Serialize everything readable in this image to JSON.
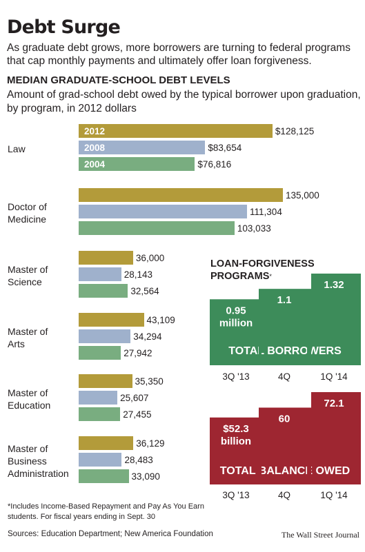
{
  "header": {
    "title": "Debt Surge",
    "subtitle": "As graduate debt grows, more borrowers are turning to federal programs that cap monthly payments and ultimately offer loan forgiveness."
  },
  "chart_data": [
    {
      "type": "bar",
      "orientation": "horizontal",
      "title": "MEDIAN GRADUATE-SCHOOL DEBT LEVELS",
      "subtitle": "Amount of grad-school debt owed by the typical borrower upon graduation, by program, in 2012 dollars",
      "categories": [
        [
          "Law"
        ],
        [
          "Doctor of",
          "Medicine"
        ],
        [
          "Master of",
          "Science"
        ],
        [
          "Master of",
          "Arts"
        ],
        [
          "Master of",
          "Education"
        ],
        [
          "Master of",
          "Business",
          "Administration"
        ]
      ],
      "series": [
        {
          "name": "2012",
          "color": "#b39b3a",
          "values": [
            128125,
            135000,
            36000,
            43109,
            35350,
            36129
          ],
          "labels": [
            "$128,125",
            "135,000",
            "36,000",
            "43,109",
            "35,350",
            "36,129"
          ]
        },
        {
          "name": "2008",
          "color": "#9fb1cc",
          "values": [
            83654,
            111304,
            28143,
            34294,
            25607,
            28483
          ],
          "labels": [
            "$83,654",
            "111,304",
            "28,143",
            "34,294",
            "25,607",
            "28,483"
          ]
        },
        {
          "name": "2004",
          "color": "#79ad80",
          "values": [
            76816,
            103033,
            32564,
            27942,
            27455,
            33090
          ],
          "labels": [
            "$76,816",
            "103,033",
            "32,564",
            "27,942",
            "27,455",
            "33,090"
          ]
        }
      ]
    },
    {
      "type": "bar",
      "group_title": "LOAN-FORGIVENESS PROGRAMS",
      "footnote_marker": "*",
      "title": "TOTAL BORROWERS",
      "color": "#3d8c5a",
      "categories": [
        "3Q '13",
        "4Q",
        "1Q '14"
      ],
      "values": [
        0.95,
        1.1,
        1.32
      ],
      "labels": [
        "0.95",
        "1.1",
        "1.32"
      ],
      "first_unit": "million"
    },
    {
      "type": "bar",
      "title": "TOTAL BALANCE OWED",
      "color": "#9e2631",
      "categories": [
        "3Q '13",
        "4Q",
        "1Q '14"
      ],
      "values": [
        52.3,
        60,
        72.1
      ],
      "labels": [
        "$52.3",
        "60",
        "72.1"
      ],
      "first_unit": "billion"
    }
  ],
  "footer": {
    "footnote": "*Includes Income-Based Repayment and Pay As You Earn students.  For fiscal years ending in Sept. 30",
    "sources": "Sources: Education Department; New America Foundation",
    "credit": "The Wall Street Journal"
  }
}
